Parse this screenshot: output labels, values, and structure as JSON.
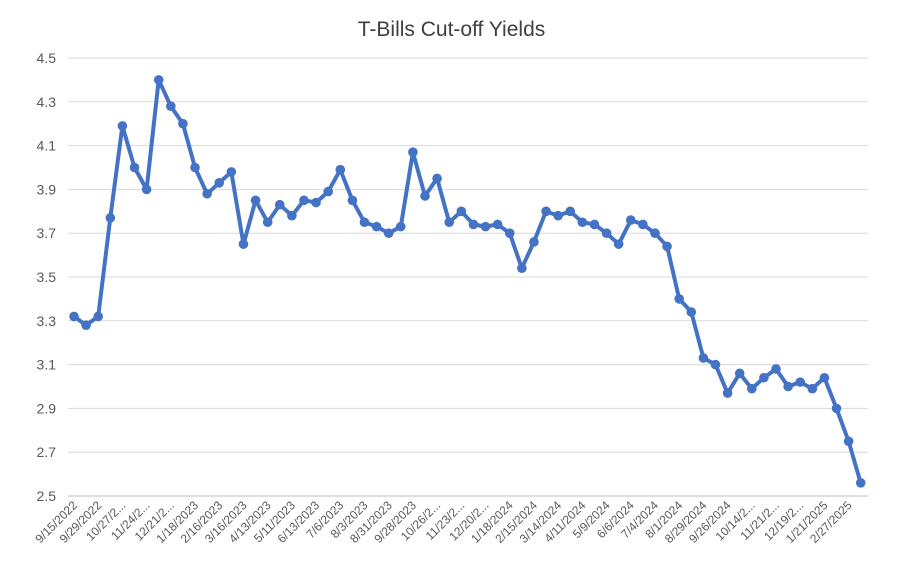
{
  "chart_data": {
    "type": "line",
    "title": "T-Bills Cut-off Yields",
    "xlabel": "",
    "ylabel": "",
    "ylim": [
      2.5,
      4.5
    ],
    "yticks": [
      "2.5",
      "2.7",
      "2.9",
      "3.1",
      "3.3",
      "3.5",
      "3.7",
      "3.9",
      "4.1",
      "4.3",
      "4.5"
    ],
    "grid": true,
    "legend": "none",
    "line_color": "#4472C4",
    "x_tick_labels": [
      "9/15/2022",
      "9/29/2022",
      "10/27/2...",
      "11/24/2...",
      "12/21/2...",
      "1/18/2023",
      "2/16/2023",
      "3/16/2023",
      "4/13/2023",
      "5/11/2023",
      "6/13/2023",
      "7/6/2023",
      "8/3/2023",
      "8/31/2023",
      "9/28/2023",
      "10/26/2...",
      "11/23/2...",
      "12/20/2...",
      "1/18/2024",
      "2/15/2024",
      "3/14/2024",
      "4/11/2024",
      "5/9/2024",
      "6/6/2024",
      "7/4/2024",
      "8/1/2024",
      "8/29/2024",
      "9/26/2024",
      "10/14/2...",
      "11/21/2...",
      "12/19/2...",
      "1/21/2025",
      "2/27/2025"
    ],
    "values": [
      3.32,
      3.28,
      3.32,
      3.77,
      4.19,
      4.0,
      3.9,
      4.4,
      4.28,
      4.2,
      4.0,
      3.88,
      3.93,
      3.98,
      3.65,
      3.85,
      3.75,
      3.83,
      3.78,
      3.85,
      3.84,
      3.89,
      3.99,
      3.85,
      3.75,
      3.73,
      3.7,
      3.73,
      4.07,
      3.87,
      3.95,
      3.75,
      3.8,
      3.74,
      3.73,
      3.74,
      3.7,
      3.54,
      3.66,
      3.8,
      3.78,
      3.8,
      3.75,
      3.74,
      3.7,
      3.65,
      3.76,
      3.74,
      3.7,
      3.64,
      3.4,
      3.34,
      3.13,
      3.1,
      2.97,
      3.06,
      2.99,
      3.04,
      3.08,
      3.0,
      3.02,
      2.99,
      3.04,
      2.9,
      2.75,
      2.56
    ]
  }
}
